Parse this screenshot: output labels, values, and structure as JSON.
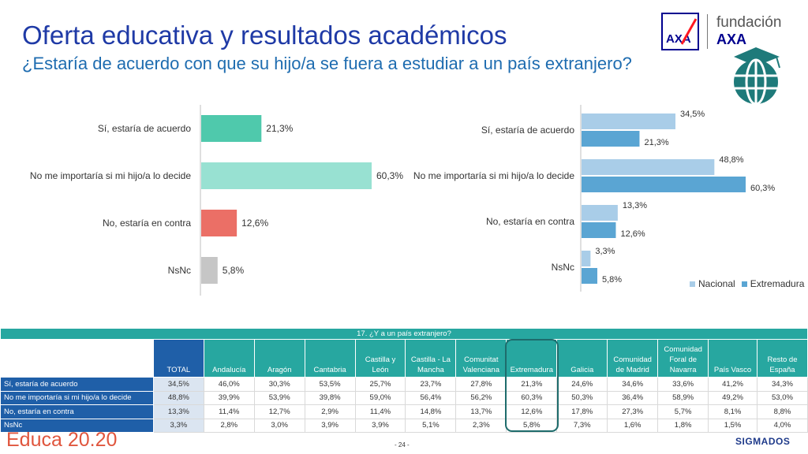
{
  "title": "Oferta educativa y resultados académicos",
  "subtitle": "¿Estaría de acuerdo con que su hijo/a se fuera a estudiar a un país extranjero?",
  "logo": {
    "name": "fundación",
    "brand": "AXA"
  },
  "chart_data": [
    {
      "type": "bar",
      "orientation": "horizontal",
      "categories": [
        "Sí, estaría de acuerdo",
        "No me importaría si mi hijo/a lo decide",
        "No, estaría en contra",
        "NsNc"
      ],
      "values": [
        21.3,
        60.3,
        12.6,
        5.8
      ],
      "value_labels": [
        "21,3%",
        "60,3%",
        "12,6%",
        "5,8%"
      ],
      "colors": [
        "#4fc9ac",
        "#98e1d2",
        "#eb6f66",
        "#c6c6c6"
      ],
      "xlim": [
        0,
        65
      ]
    },
    {
      "type": "bar",
      "orientation": "horizontal",
      "categories": [
        "Sí, estaría de acuerdo",
        "No me importaría si mi hijo/a lo decide",
        "No, estaría en contra",
        "NsNc"
      ],
      "series": [
        {
          "name": "Nacional",
          "values": [
            34.5,
            48.8,
            13.3,
            3.3
          ],
          "labels": [
            "34,5%",
            "48,8%",
            "13,3%",
            "3,3%"
          ],
          "color": "#a9cde8"
        },
        {
          "name": "Extremadura",
          "values": [
            21.3,
            60.3,
            12.6,
            5.8
          ],
          "labels": [
            "21,3%",
            "60,3%",
            "12,6%",
            "5,8%"
          ],
          "color": "#5aa5d3"
        }
      ],
      "legend": "bottom-right",
      "xlim": [
        0,
        65
      ]
    },
    {
      "type": "table",
      "question": "17. ¿Y a un país extranjero?",
      "columns": [
        "TOTAL",
        "Andalucía",
        "Aragón",
        "Cantabria",
        "Castilla y León",
        "Castilla - La Mancha",
        "Comunitat Valenciana",
        "Extremadura",
        "Galicia",
        "Comunidad de Madrid",
        "Comunidad Foral de Navarra",
        "País Vasco",
        "Resto de España"
      ],
      "rows": [
        {
          "label": "Sí, estaría de acuerdo",
          "values": [
            "34,5%",
            "46,0%",
            "30,3%",
            "53,5%",
            "25,7%",
            "23,7%",
            "27,8%",
            "21,3%",
            "24,6%",
            "34,6%",
            "33,6%",
            "41,2%",
            "34,3%"
          ]
        },
        {
          "label": "No me importaría si mi hijo/a lo decide",
          "values": [
            "48,8%",
            "39,9%",
            "53,9%",
            "39,8%",
            "59,0%",
            "56,4%",
            "56,2%",
            "60,3%",
            "50,3%",
            "36,4%",
            "58,9%",
            "49,2%",
            "53,0%"
          ]
        },
        {
          "label": "No, estaría en contra",
          "values": [
            "13,3%",
            "11,4%",
            "12,7%",
            "2,9%",
            "11,4%",
            "14,8%",
            "13,7%",
            "12,6%",
            "17,8%",
            "27,3%",
            "5,7%",
            "8,1%",
            "8,8%"
          ]
        },
        {
          "label": "NsNc",
          "values": [
            "3,3%",
            "2,8%",
            "3,0%",
            "3,9%",
            "3,9%",
            "5,1%",
            "2,3%",
            "5,8%",
            "7,3%",
            "1,6%",
            "1,8%",
            "1,5%",
            "4,0%"
          ]
        }
      ],
      "highlighted_column": "Extremadura"
    }
  ],
  "footer": {
    "brand": "Educa 20.20",
    "page": "- 24 -",
    "company": "SIGMADOS"
  }
}
